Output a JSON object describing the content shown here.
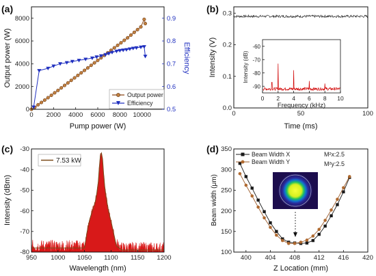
{
  "colors": {
    "axes": "#111111",
    "efficiency": "#1f2fbf",
    "output_power": "#8b4513",
    "spectrum": "#d40000",
    "spectrum_line": "#7a4a1a",
    "noise": "#d00000",
    "beam_x": "#1a1a1a",
    "beam_y": "#9a5a2a",
    "mode_bg": "#1c0d4d"
  },
  "chart_data": [
    {
      "id": "a",
      "panel_label": "(a)",
      "type": "line",
      "xlabel": "Pump power (W)",
      "ylabel": "Output power (W)",
      "y2label": "Efficiency",
      "xlim": [
        0,
        12000
      ],
      "ylim": [
        0,
        9000
      ],
      "y2lim": [
        0.5,
        0.95
      ],
      "xticks": [
        0,
        2000,
        4000,
        6000,
        8000,
        10000
      ],
      "yticks": [
        0,
        2000,
        4000,
        6000,
        8000
      ],
      "y2ticks": [
        0.5,
        0.6,
        0.7,
        0.8,
        0.9
      ],
      "legend": [
        "Output power",
        "Efficiency"
      ],
      "legend_position": "bottom-right",
      "series": [
        {
          "name": "Output power",
          "axis": "left",
          "x": [
            0,
            300,
            600,
            900,
            1200,
            1500,
            1800,
            2100,
            2400,
            2700,
            3000,
            3300,
            3600,
            3900,
            4200,
            4500,
            4800,
            5100,
            5400,
            5700,
            6000,
            6300,
            6600,
            6900,
            7200,
            7500,
            7800,
            8100,
            8400,
            8700,
            9000,
            9300,
            9600,
            9900,
            10200,
            10300
          ],
          "y": [
            0,
            180,
            400,
            600,
            810,
            1020,
            1230,
            1450,
            1660,
            1880,
            2100,
            2320,
            2540,
            2760,
            2980,
            3200,
            3420,
            3640,
            3860,
            4080,
            4300,
            4520,
            4740,
            4960,
            5180,
            5400,
            5620,
            5840,
            6060,
            6280,
            6520,
            6760,
            7000,
            7240,
            7900,
            7530
          ]
        },
        {
          "name": "Efficiency",
          "axis": "right",
          "x": [
            200,
            700,
            1500,
            2000,
            2600,
            3200,
            3700,
            4300,
            4900,
            5500,
            5900,
            6300,
            6700,
            7000,
            7300,
            7700,
            8000,
            8300,
            8600,
            8900,
            9200,
            9500,
            9900,
            10200,
            10300
          ],
          "y": [
            0.51,
            0.67,
            0.68,
            0.69,
            0.7,
            0.705,
            0.71,
            0.715,
            0.72,
            0.725,
            0.73,
            0.735,
            0.74,
            0.745,
            0.75,
            0.755,
            0.758,
            0.76,
            0.762,
            0.765,
            0.768,
            0.77,
            0.773,
            0.775,
            0.733
          ]
        }
      ]
    },
    {
      "id": "b",
      "panel_label": "(b)",
      "type": "line",
      "xlabel": "Time (ms)",
      "ylabel": "Intensity (V)",
      "xlim": [
        0,
        100
      ],
      "ylim": [
        0,
        0.32
      ],
      "xticks": [
        0,
        50,
        100
      ],
      "yticks": [
        0.0,
        0.1,
        0.2,
        0.3
      ],
      "ytick_labels": [
        "0.0",
        "0.1",
        "0.2",
        "0.3"
      ],
      "series": [
        {
          "name": "",
          "level": 0.29,
          "noise": 0.004,
          "x_range": [
            0,
            100
          ]
        }
      ],
      "inset": {
        "type": "line",
        "xlabel": "Frequency (kHz)",
        "ylabel": "Intensity (dB)",
        "xlim": [
          0,
          10
        ],
        "ylim": [
          -95,
          -55
        ],
        "xticks": [
          0,
          2,
          4,
          6,
          8,
          10
        ],
        "yticks": [
          -90,
          -80,
          -70,
          -60
        ],
        "noise_floor": -92,
        "peaks": [
          {
            "x": 2.0,
            "y": -73
          },
          {
            "x": 4.0,
            "y": -78
          },
          {
            "x": 6.0,
            "y": -86
          },
          {
            "x": 1.2,
            "y": -87
          },
          {
            "x": 8.0,
            "y": -88
          }
        ]
      }
    },
    {
      "id": "c",
      "panel_label": "(c)",
      "type": "line",
      "xlabel": "Wavelength (nm)",
      "ylabel": "Intensity (dBm)",
      "xlim": [
        950,
        1200
      ],
      "ylim": [
        -80,
        -30
      ],
      "xticks": [
        950,
        1000,
        1050,
        1100,
        1150,
        1200
      ],
      "yticks": [
        -80,
        -70,
        -60,
        -50,
        -40,
        -30
      ],
      "legend": [
        "7.53 kW"
      ],
      "legend_position": "top-left",
      "series": [
        {
          "name": "7.53 kW",
          "x": [
            950,
            1000,
            1040,
            1050,
            1055,
            1060,
            1065,
            1070,
            1073,
            1076,
            1078,
            1080,
            1082,
            1084,
            1086,
            1088,
            1090,
            1093,
            1096,
            1100,
            1105,
            1110,
            1120,
            1200
          ],
          "y": [
            -78,
            -78,
            -78,
            -78,
            -70,
            -64,
            -60,
            -56,
            -52,
            -46,
            -39,
            -33,
            -32,
            -35,
            -42,
            -48,
            -52,
            -57,
            -61,
            -65,
            -71,
            -77,
            -79,
            -79
          ]
        }
      ]
    },
    {
      "id": "d",
      "panel_label": "(d)",
      "type": "line",
      "xlabel": "Z Location (mm)",
      "ylabel": "Beam width (μm)",
      "xlim": [
        398,
        420
      ],
      "ylim": [
        100,
        350
      ],
      "xticks": [
        400,
        404,
        408,
        412,
        416,
        420
      ],
      "yticks": [
        100,
        150,
        200,
        250,
        300,
        350
      ],
      "legend": [
        "Beam Width X",
        "Beam Width Y"
      ],
      "legend_position": "top-left",
      "annotations": [
        "M²x:2.5",
        "M²y:2.5"
      ],
      "series": [
        {
          "name": "Beam Width X",
          "x": [
            399,
            400,
            401,
            402,
            403,
            404,
            405,
            406,
            407,
            408,
            409,
            410,
            411,
            412,
            413,
            414,
            415,
            416,
            417
          ],
          "y": [
            315,
            283,
            255,
            226,
            198,
            171,
            150,
            132,
            124,
            122,
            121,
            122,
            128,
            143,
            163,
            188,
            215,
            246,
            281
          ]
        },
        {
          "name": "Beam Width Y",
          "x": [
            399,
            400,
            401,
            402,
            403,
            404,
            405,
            406,
            407,
            408,
            409,
            410,
            411,
            412,
            413,
            414,
            415,
            416,
            417
          ],
          "y": [
            290,
            262,
            236,
            209,
            183,
            160,
            141,
            128,
            121,
            121,
            124,
            129,
            139,
            155,
            177,
            202,
            228,
            256,
            283
          ]
        }
      ]
    }
  ]
}
